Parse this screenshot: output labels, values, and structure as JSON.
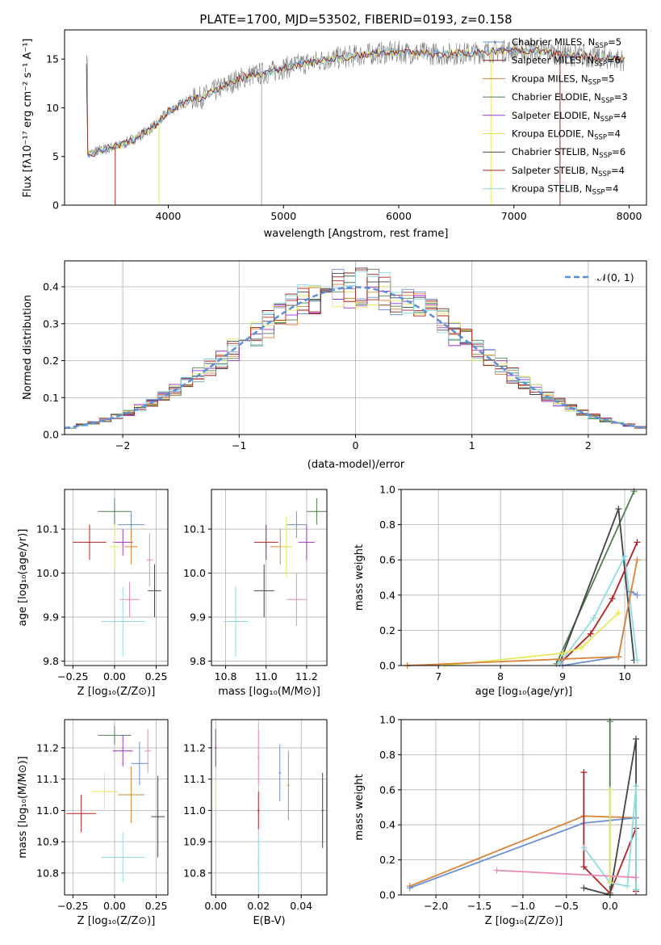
{
  "title": "PLATE=1700, MJD=53502, FIBERID=0193, z=0.158",
  "spectrum": {
    "xlabel": "wavelength [Angstrom, rest frame]",
    "ylabel": "Flux [fλ10⁻¹⁷ erg cm⁻² s⁻¹ A⁻¹]",
    "xticks": [
      "4000",
      "5000",
      "6000",
      "7000",
      "8000"
    ],
    "yticks": [
      "0",
      "5",
      "10",
      "15"
    ],
    "legend": [
      "Chabrier MILES, N_SSP=5",
      "Salpeter MILES, N_SSP=6",
      "Kroupa MILES, N_SSP=5",
      "Chabrier ELODIE, N_SSP=3",
      "Salpeter ELODIE, N_SSP=4",
      "Kroupa ELODIE, N_SSP=4",
      "Chabrier STELIB, N_SSP=6",
      "Salpeter STELIB, N_SSP=4",
      "Kroupa STELIB, N_SSP=4"
    ],
    "legend_main": [
      "Chabrier MILES, N",
      "Salpeter MILES, N",
      "Kroupa MILES, N",
      "Chabrier ELODIE, N",
      "Salpeter ELODIE, N",
      "Kroupa ELODIE, N",
      "Chabrier STELIB, N",
      "Salpeter STELIB, N",
      "Kroupa STELIB, N"
    ],
    "legend_sub": [
      "SSP",
      "SSP",
      "SSP",
      "SSP",
      "SSP",
      "SSP",
      "SSP",
      "SSP",
      "SSP"
    ],
    "legend_val": [
      "=5",
      "=6",
      "=5",
      "=3",
      "=4",
      "=4",
      "=6",
      "=4",
      "=4"
    ]
  },
  "colors": {
    "Chabrier MILES": "#6a8fd4",
    "Salpeter MILES": "#8b1a1a",
    "Kroupa MILES": "#d9843b",
    "Chabrier ELODIE": "#4f7f4f",
    "Salpeter ELODIE": "#9932cc",
    "Kroupa ELODIE": "#e5e85a",
    "Chabrier STELIB": "#444444",
    "Salpeter STELIB": "#b22222",
    "Kroupa STELIB": "#8fdce0",
    "Salpeter STELIB (Z)": "#e98ab5",
    "data": "#808080",
    "normal": "#5b8fd6"
  },
  "hist": {
    "xlabel": "(data-model)/error",
    "ylabel": "Normed distribution",
    "xticks": [
      "−2",
      "−1",
      "0",
      "1",
      "2"
    ],
    "yticks": [
      "0.0",
      "0.1",
      "0.2",
      "0.3",
      "0.4"
    ],
    "legend": "𝒩(0, 1)"
  },
  "panels": {
    "age_vs_Z": {
      "xlabel": "Z [log₁₀(Z/Z⊙)]",
      "ylabel": "age  [log₁₀(age/yr)]",
      "xticks": [
        "−0.25",
        "0.00",
        "0.25"
      ],
      "yticks": [
        "9.8",
        "9.9",
        "10.0",
        "10.1"
      ]
    },
    "age_vs_mass": {
      "xlabel": "mass [log₁₀(M/M⊙)]",
      "xticks": [
        "10.8",
        "11.0",
        "11.2"
      ],
      "yticks": [
        "9.8",
        "9.9",
        "10.0",
        "10.1"
      ]
    },
    "weight_vs_age": {
      "xlabel": "age  [log₁₀(age/yr)]",
      "ylabel": "mass weight",
      "xticks": [
        "7",
        "8",
        "9",
        "10"
      ],
      "yticks": [
        "0.0",
        "0.2",
        "0.4",
        "0.6",
        "0.8",
        "1.0"
      ]
    },
    "mass_vs_Z": {
      "xlabel": "Z [log₁₀(Z/Z⊙)]",
      "ylabel": "mass [log₁₀(M/M⊙)]",
      "xticks": [
        "−0.25",
        "0.00",
        "0.25"
      ],
      "yticks": [
        "10.8",
        "10.9",
        "11.0",
        "11.1",
        "11.2"
      ]
    },
    "mass_vs_ebv": {
      "xlabel": "E(B-V)",
      "xticks": [
        "0.00",
        "0.02",
        "0.04"
      ],
      "yticks": [
        "10.8",
        "10.9",
        "11.0",
        "11.1",
        "11.2"
      ]
    },
    "weight_vs_Z": {
      "xlabel": "Z [log₁₀(Z/Z⊙)]",
      "ylabel": "mass weight",
      "xticks": [
        "−2.0",
        "−1.5",
        "−1.0",
        "−0.5",
        "0.0"
      ],
      "yticks": [
        "0.0",
        "0.2",
        "0.4",
        "0.6",
        "0.8",
        "1.0"
      ]
    }
  },
  "chart_data": [
    {
      "type": "line",
      "title": "PLATE=1700, MJD=53502, FIBERID=0193, z=0.158",
      "xlabel": "wavelength [Angstrom, rest frame]",
      "ylabel": "Flux [fλ10⁻¹⁷ erg cm⁻² s⁻¹ A⁻¹]",
      "xlim": [
        3100,
        8150
      ],
      "ylim": [
        0,
        18
      ],
      "series": [
        {
          "x": [
            3300,
            3400,
            3500,
            3600,
            3700,
            3800,
            3900,
            4000,
            4100,
            4200,
            4300,
            4400,
            4500,
            4600,
            4700,
            4800,
            4900,
            5000,
            5200,
            5400,
            5600,
            5800,
            6000,
            6200,
            6400,
            6600,
            6800,
            7000,
            7200,
            7400,
            7600,
            7800,
            7950
          ],
          "y": [
            5.2,
            5.6,
            5.9,
            6.2,
            6.8,
            7.5,
            8.3,
            9.6,
            10.3,
            10.9,
            11.1,
            11.7,
            12.3,
            12.9,
            13.3,
            13.5,
            13.7,
            14.1,
            14.6,
            15.0,
            15.3,
            15.6,
            15.7,
            15.6,
            15.5,
            15.6,
            15.8,
            15.9,
            15.9,
            15.5,
            15.3,
            15.1,
            14.9
          ]
        }
      ],
      "legend": [
        "Chabrier MILES, N_SSP=5",
        "Salpeter MILES, N_SSP=6",
        "Kroupa MILES, N_SSP=5",
        "Chabrier ELODIE, N_SSP=3",
        "Salpeter ELODIE, N_SSP=4",
        "Kroupa ELODIE, N_SSP=4",
        "Chabrier STELIB, N_SSP=6",
        "Salpeter STELIB, N_SSP=4",
        "Kroupa STELIB, N_SSP=4"
      ],
      "grid": false,
      "legend_position": "top-right"
    },
    {
      "type": "line",
      "xlabel": "(data-model)/error",
      "ylabel": "Normed distribution",
      "xlim": [
        -2.5,
        2.5
      ],
      "ylim": [
        0,
        0.47
      ],
      "series": [
        {
          "name": "𝒩(0, 1)",
          "x": [
            -2.5,
            -2.0,
            -1.5,
            -1.0,
            -0.5,
            0.0,
            0.5,
            1.0,
            1.5,
            2.0,
            2.5
          ],
          "y": [
            0.018,
            0.054,
            0.13,
            0.242,
            0.352,
            0.399,
            0.352,
            0.242,
            0.13,
            0.054,
            0.018
          ]
        }
      ],
      "grid": true,
      "legend_position": "top-right"
    },
    {
      "type": "scatter",
      "xlabel": "Z [log₁₀(Z/Z⊙)]",
      "ylabel": "age  [log₁₀(age/yr)]",
      "xlim": [
        -0.3,
        0.32
      ],
      "ylim": [
        9.79,
        10.19
      ],
      "points": [
        {
          "x": 0.0,
          "y": 10.14,
          "color": "#4f7f4f"
        },
        {
          "x": 0.1,
          "y": 10.11,
          "color": "#6a8fd4"
        },
        {
          "x": 0.05,
          "y": 10.07,
          "color": "#9932cc"
        },
        {
          "x": 0.1,
          "y": 10.06,
          "color": "#d9843b"
        },
        {
          "x": -0.15,
          "y": 10.07,
          "color": "#b22222"
        },
        {
          "x": 0.0,
          "y": 10.06,
          "color": "#e5e85a"
        },
        {
          "x": 0.21,
          "y": 10.03,
          "color": "#e98ab5"
        },
        {
          "x": 0.24,
          "y": 9.96,
          "color": "#444444"
        },
        {
          "x": 0.09,
          "y": 9.94,
          "color": "#e98ab5"
        },
        {
          "x": 0.05,
          "y": 9.89,
          "color": "#8fdce0"
        }
      ],
      "grid": true
    },
    {
      "type": "scatter",
      "xlabel": "mass [log₁₀(M/M⊙)]",
      "xlim": [
        10.73,
        11.3
      ],
      "ylim": [
        9.79,
        10.19
      ],
      "points": [
        {
          "x": 11.25,
          "y": 10.14,
          "color": "#4f7f4f"
        },
        {
          "x": 11.15,
          "y": 10.11,
          "color": "#6a8fd4"
        },
        {
          "x": 11.2,
          "y": 10.07,
          "color": "#9932cc"
        },
        {
          "x": 11.07,
          "y": 10.06,
          "color": "#d9843b"
        },
        {
          "x": 11.0,
          "y": 10.07,
          "color": "#b22222"
        },
        {
          "x": 11.1,
          "y": 10.06,
          "color": "#e5e85a"
        },
        {
          "x": 10.99,
          "y": 9.96,
          "color": "#444444"
        },
        {
          "x": 11.15,
          "y": 9.94,
          "color": "#e98ab5"
        },
        {
          "x": 10.85,
          "y": 9.89,
          "color": "#8fdce0"
        }
      ],
      "grid": true
    },
    {
      "type": "line",
      "xlabel": "age  [log₁₀(age/yr)]",
      "ylabel": "mass weight",
      "xlim": [
        6.4,
        10.35
      ],
      "ylim": [
        0,
        1
      ],
      "series": [
        {
          "color": "#4f7f4f",
          "x": [
            8.9,
            10.15
          ],
          "y": [
            0.01,
            0.99
          ]
        },
        {
          "color": "#444444",
          "x": [
            8.95,
            9.9,
            10.15
          ],
          "y": [
            0.01,
            0.89,
            0.03
          ]
        },
        {
          "color": "#b22222",
          "x": [
            8.95,
            9.45,
            9.8,
            10.2
          ],
          "y": [
            0.01,
            0.18,
            0.38,
            0.7
          ]
        },
        {
          "color": "#8fdce0",
          "x": [
            8.95,
            9.5,
            10.0,
            10.2
          ],
          "y": [
            0.01,
            0.27,
            0.62,
            0.03
          ]
        },
        {
          "color": "#6a8fd4",
          "x": [
            9.0,
            9.9,
            10.1,
            10.2
          ],
          "y": [
            0.0,
            0.05,
            0.42,
            0.4
          ]
        },
        {
          "color": "#e5e85a",
          "x": [
            7.1,
            9.0,
            9.3,
            9.9
          ],
          "y": [
            0.0,
            0.07,
            0.1,
            0.3
          ]
        },
        {
          "color": "#d9843b",
          "x": [
            6.5,
            9.9,
            10.2
          ],
          "y": [
            0.0,
            0.05,
            0.6
          ]
        }
      ],
      "grid": true
    },
    {
      "type": "scatter",
      "xlabel": "Z [log₁₀(Z/Z⊙)]",
      "ylabel": "mass [log₁₀(M/M⊙)]",
      "xlim": [
        -0.3,
        0.32
      ],
      "ylim": [
        10.73,
        11.29
      ],
      "points": [
        {
          "x": 0.0,
          "y": 11.24,
          "color": "#4f7f4f"
        },
        {
          "x": 0.05,
          "y": 11.19,
          "color": "#9932cc"
        },
        {
          "x": 0.2,
          "y": 11.19,
          "color": "#e98ab5"
        },
        {
          "x": 0.15,
          "y": 11.15,
          "color": "#6a8fd4"
        },
        {
          "x": 0.1,
          "y": 11.05,
          "color": "#d9843b"
        },
        {
          "x": -0.06,
          "y": 11.06,
          "color": "#e5e85a"
        },
        {
          "x": -0.2,
          "y": 10.99,
          "color": "#b22222"
        },
        {
          "x": 0.26,
          "y": 10.98,
          "color": "#444444"
        },
        {
          "x": 0.05,
          "y": 10.85,
          "color": "#8fdce0"
        }
      ],
      "grid": true
    },
    {
      "type": "scatter",
      "xlabel": "E(B-V)",
      "xlim": [
        -0.002,
        0.052
      ],
      "ylim": [
        10.73,
        11.29
      ],
      "points": [
        {
          "x": 0.0,
          "y": 11.2,
          "color": "#9932cc"
        },
        {
          "x": 0.0,
          "y": 11.05,
          "color": "#e5e85a"
        },
        {
          "x": 0.02,
          "y": 11.17,
          "color": "#e98ab5"
        },
        {
          "x": 0.02,
          "y": 11.0,
          "color": "#b22222"
        },
        {
          "x": 0.02,
          "y": 10.83,
          "color": "#8fdce0"
        },
        {
          "x": 0.03,
          "y": 11.12,
          "color": "#6a8fd4"
        },
        {
          "x": 0.034,
          "y": 11.08,
          "color": "#d9843b"
        },
        {
          "x": 0.05,
          "y": 11.0,
          "color": "#444444"
        }
      ],
      "grid": true
    },
    {
      "type": "line",
      "xlabel": "Z [log₁₀(Z/Z⊙)]",
      "ylabel": "mass weight",
      "xlim": [
        -2.4,
        0.42
      ],
      "ylim": [
        0,
        1
      ],
      "series": [
        {
          "color": "#d9843b",
          "x": [
            -2.3,
            -0.3,
            0.3
          ],
          "y": [
            0.05,
            0.45,
            0.44
          ]
        },
        {
          "color": "#6a8fd4",
          "x": [
            -2.3,
            -0.3,
            0.3
          ],
          "y": [
            0.04,
            0.41,
            0.44
          ]
        },
        {
          "color": "#b22222",
          "x": [
            -0.3,
            -0.3,
            0.0,
            0.3,
            0.3
          ],
          "y": [
            0.7,
            0.16,
            0.01,
            0.38,
            0.02
          ]
        },
        {
          "color": "#444444",
          "x": [
            -0.3,
            0.0,
            0.3,
            0.3
          ],
          "y": [
            0.04,
            0.0,
            0.89,
            0.03
          ]
        },
        {
          "color": "#4f7f4f",
          "x": [
            0.0,
            0.0
          ],
          "y": [
            0.99,
            0.0
          ]
        },
        {
          "color": "#8fdce0",
          "x": [
            -0.3,
            0.0,
            0.2,
            0.3,
            0.3
          ],
          "y": [
            0.27,
            0.07,
            0.05,
            0.62,
            0.03
          ]
        },
        {
          "color": "#e98ab5",
          "x": [
            -1.3,
            0.3
          ],
          "y": [
            0.14,
            0.1
          ]
        },
        {
          "color": "#e5e85a",
          "x": [
            0.0,
            0.0
          ],
          "y": [
            0.6,
            0.07
          ]
        }
      ],
      "grid": true
    }
  ]
}
